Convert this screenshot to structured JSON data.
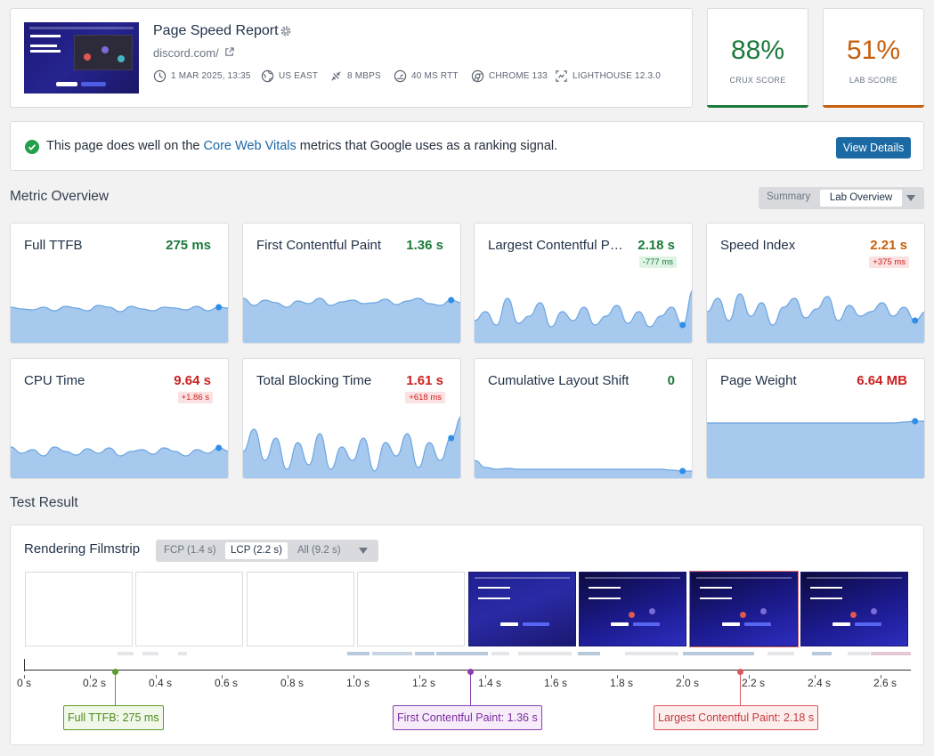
{
  "header": {
    "title": "Page Speed Report",
    "url": "discord.com/",
    "meta": {
      "date": "1 MAR 2025, 13:35",
      "location": "US EAST",
      "bandwidth": "8 MBPS",
      "rtt": "40 MS RTT",
      "browser": "CHROME 133",
      "lighthouse": "LIGHTHOUSE 12.3.0"
    }
  },
  "scores": {
    "crux": {
      "value": "88%",
      "label": "CRUX SCORE",
      "color": "#1c7a3a"
    },
    "lab": {
      "value": "51%",
      "label": "LAB SCORE",
      "color": "#c75f0c"
    }
  },
  "banner": {
    "before": "This page does well on the ",
    "link": "Core Web Vitals",
    "after": " metrics that Google uses as a ranking signal.",
    "button": "View Details"
  },
  "overview": {
    "title": "Metric Overview",
    "toggle": {
      "summary": "Summary",
      "active": "Lab Overview"
    }
  },
  "metrics": [
    {
      "name": "Full TTFB",
      "value": "275 ms",
      "status": "good",
      "delta": ""
    },
    {
      "name": "First Contentful Paint",
      "value": "1.36 s",
      "status": "good",
      "delta": ""
    },
    {
      "name": "Largest Contentful Paint",
      "value": "2.18 s",
      "status": "good",
      "delta": "-777 ms"
    },
    {
      "name": "Speed Index",
      "value": "2.21 s",
      "status": "warn",
      "delta": "+375 ms"
    },
    {
      "name": "CPU Time",
      "value": "9.64 s",
      "status": "bad",
      "delta": "+1.86 s"
    },
    {
      "name": "Total Blocking Time",
      "value": "1.61 s",
      "status": "bad",
      "delta": "+618 ms"
    },
    {
      "name": "Cumulative Layout Shift",
      "value": "0",
      "status": "good",
      "delta": ""
    },
    {
      "name": "Page Weight",
      "value": "6.64 MB",
      "status": "bad",
      "delta": ""
    }
  ],
  "colors": {
    "good": "#1c7a3a",
    "warn": "#c75f0c",
    "bad": "#cc1f1f",
    "good_bg": "#def3e4",
    "bad_bg": "#fbe1e1",
    "accent": "#1c6aa4"
  },
  "result": {
    "title": "Test Result",
    "filmstrip_title": "Rendering Filmstrip",
    "toggle": {
      "fcp": "FCP (1.4 s)",
      "lcp": "LCP (2.2 s)",
      "all": "All (9.2 s)"
    },
    "ticks": [
      "0 s",
      "0.2 s",
      "0.4 s",
      "0.6 s",
      "0.8 s",
      "1.0 s",
      "1.2 s",
      "1.4 s",
      "1.6 s",
      "1.8 s",
      "2.0 s",
      "2.2 s",
      "2.4 s",
      "2.6 s"
    ],
    "markers": {
      "ttfb": "Full TTFB: 275 ms",
      "fcp": "First Contentful Paint: 1.36 s",
      "lcp": "Largest Contentful Paint: 2.18 s"
    }
  }
}
